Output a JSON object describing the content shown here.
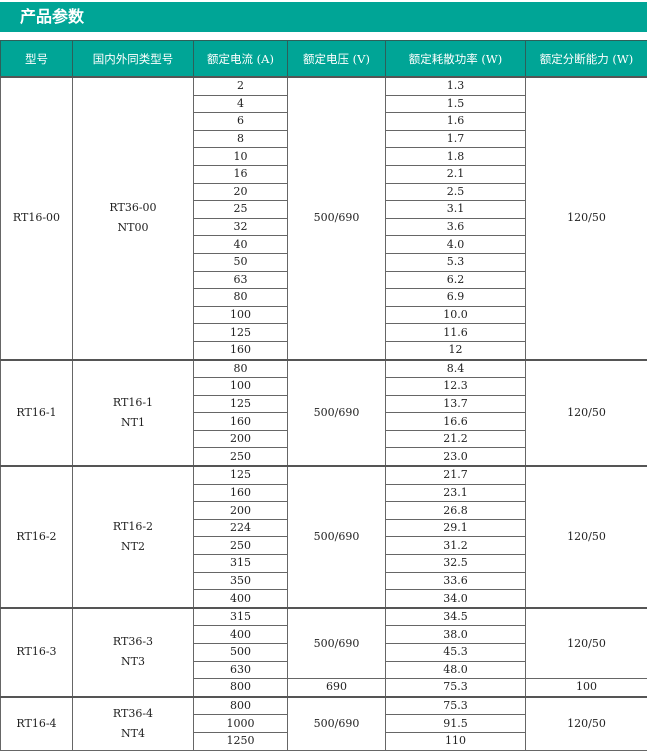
{
  "section_title": "产品参数",
  "headers": [
    "型号",
    "国内外同类型号",
    "额定电流 (A)",
    "额定电压 (V)",
    "额定耗散功率 (W)",
    "额定分断能力 (W)"
  ],
  "groups": [
    {
      "model": "RT16-00",
      "equivalents": [
        "RT36-00",
        "NT00"
      ],
      "currents": [
        "2",
        "4",
        "6",
        "8",
        "10",
        "16",
        "20",
        "25",
        "32",
        "40",
        "50",
        "63",
        "80",
        "100",
        "125",
        "160"
      ],
      "powers": [
        "1.3",
        "1.5",
        "1.6",
        "1.7",
        "1.8",
        "2.1",
        "2.5",
        "3.1",
        "3.6",
        "4.0",
        "5.3",
        "6.2",
        "6.9",
        "10.0",
        "11.6",
        "12"
      ],
      "voltage_spans": [
        {
          "value": "500/690",
          "rows": 16
        }
      ],
      "capacity_spans": [
        {
          "value": "120/50",
          "rows": 16
        }
      ]
    },
    {
      "model": "RT16-1",
      "equivalents": [
        "RT16-1",
        "NT1"
      ],
      "currents": [
        "80",
        "100",
        "125",
        "160",
        "200",
        "250"
      ],
      "powers": [
        "8.4",
        "12.3",
        "13.7",
        "16.6",
        "21.2",
        "23.0"
      ],
      "voltage_spans": [
        {
          "value": "500/690",
          "rows": 6
        }
      ],
      "capacity_spans": [
        {
          "value": "120/50",
          "rows": 6
        }
      ]
    },
    {
      "model": "RT16-2",
      "equivalents": [
        "RT16-2",
        "NT2"
      ],
      "currents": [
        "125",
        "160",
        "200",
        "224",
        "250",
        "315",
        "350",
        "400"
      ],
      "powers": [
        "21.7",
        "23.1",
        "26.8",
        "29.1",
        "31.2",
        "32.5",
        "33.6",
        "34.0"
      ],
      "voltage_spans": [
        {
          "value": "500/690",
          "rows": 8
        }
      ],
      "capacity_spans": [
        {
          "value": "120/50",
          "rows": 8
        }
      ]
    },
    {
      "model": "RT16-3",
      "equivalents": [
        "RT36-3",
        "NT3"
      ],
      "currents": [
        "315",
        "400",
        "500",
        "630",
        "800"
      ],
      "powers": [
        "34.5",
        "38.0",
        "45.3",
        "48.0",
        "75.3"
      ],
      "voltage_spans": [
        {
          "value": "500/690",
          "rows": 4
        },
        {
          "value": "690",
          "rows": 1
        }
      ],
      "capacity_spans": [
        {
          "value": "120/50",
          "rows": 4
        },
        {
          "value": "100",
          "rows": 1
        }
      ]
    },
    {
      "model": "RT16-4",
      "equivalents": [
        "RT36-4",
        "NT4"
      ],
      "currents": [
        "800",
        "1000",
        "1250"
      ],
      "powers": [
        "75.3",
        "91.5",
        "110"
      ],
      "voltage_spans": [
        {
          "value": "500/690",
          "rows": 3
        }
      ],
      "capacity_spans": [
        {
          "value": "120/50",
          "rows": 3
        }
      ]
    }
  ],
  "colors": {
    "accent": "#00a596"
  }
}
